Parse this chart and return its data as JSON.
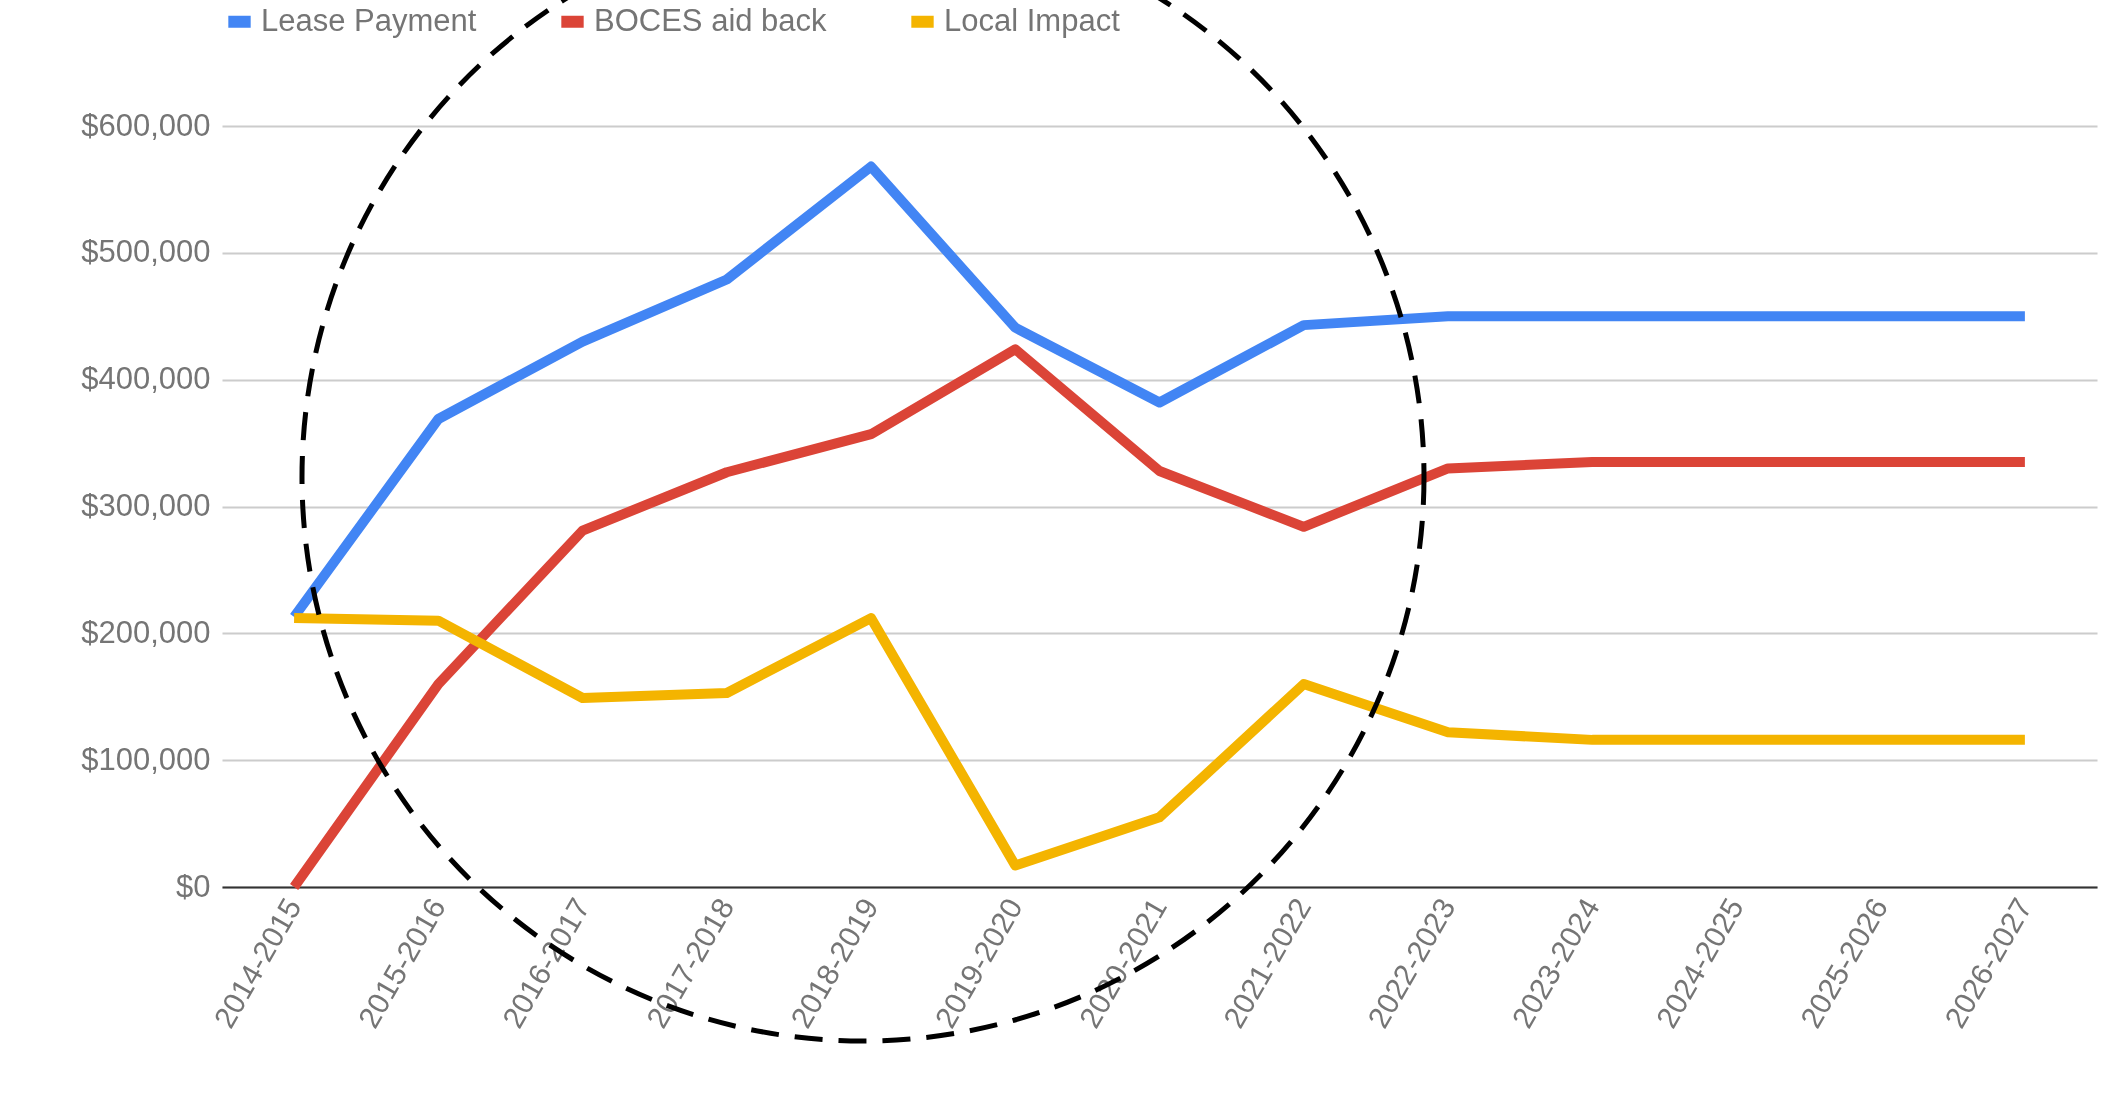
{
  "chart_data": {
    "type": "line",
    "categories": [
      "2014-2015",
      "2015-2016",
      "2016-2017",
      "2017-2018",
      "2018-2019",
      "2019-2020",
      "2020-2021",
      "2021-2022",
      "2022-2023",
      "2023-2024",
      "2024-2025",
      "2025-2026",
      "2026-2027"
    ],
    "series": [
      {
        "name": "Lease Payment",
        "color": "#4285f4",
        "values": [
          213000,
          369000,
          430000,
          479000,
          568000,
          441000,
          382000,
          443000,
          450000,
          450000,
          450000,
          450000,
          450000
        ]
      },
      {
        "name": "BOCES aid back",
        "color": "#db4437",
        "values": [
          0,
          160000,
          281000,
          327000,
          357000,
          424000,
          328000,
          284000,
          330000,
          335000,
          335000,
          335000,
          335000
        ]
      },
      {
        "name": "Local Impact",
        "color": "#f4b400",
        "values": [
          212000,
          210000,
          149000,
          153000,
          212000,
          17000,
          55000,
          160000,
          122000,
          116000,
          116000,
          116000,
          116000
        ]
      }
    ],
    "ylim": [
      0,
      600000
    ],
    "yticks": [
      {
        "value": 0,
        "label": "$0"
      },
      {
        "value": 100000,
        "label": "$100,000"
      },
      {
        "value": 200000,
        "label": "$200,000"
      },
      {
        "value": 300000,
        "label": "$300,000"
      },
      {
        "value": 400000,
        "label": "$400,000"
      },
      {
        "value": 500000,
        "label": "$500,000"
      },
      {
        "value": 600000,
        "label": "$600,000"
      }
    ],
    "grid": "y",
    "legend": "top",
    "marker": "none",
    "line_style": "solid"
  }
}
